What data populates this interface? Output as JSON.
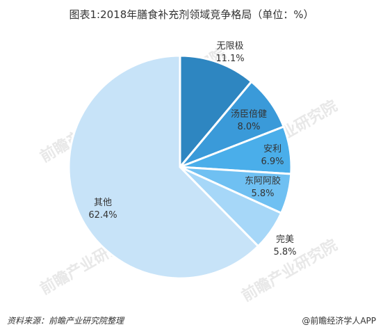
{
  "chart_data": {
    "type": "pie",
    "title": "图表1:2018年膳食补充剂领域竞争格局（单位：%）",
    "slices": [
      {
        "label": "无限极",
        "value": 11.1,
        "value_label": "11.1%",
        "color": "#2e86c1"
      },
      {
        "label": "汤臣倍健",
        "value": 8.0,
        "value_label": "8.0%",
        "color": "#3a9ad9"
      },
      {
        "label": "安利",
        "value": 6.9,
        "value_label": "6.9%",
        "color": "#4aaeea"
      },
      {
        "label": "东阿阿胶",
        "value": 5.8,
        "value_label": "5.8%",
        "color": "#6fc0f2"
      },
      {
        "label": "完美",
        "value": 5.8,
        "value_label": "5.8%",
        "color": "#a6d7f8"
      },
      {
        "label": "其他",
        "value": 62.4,
        "value_label": "62.4%",
        "color": "#c7e3f8"
      }
    ],
    "start": "12 o'clock",
    "direction": "clockwise"
  },
  "footer": {
    "source": "资料来源：前瞻产业研究院整理",
    "brand": "@前瞻经济学人APP"
  },
  "watermark": "前瞻产业研究院"
}
